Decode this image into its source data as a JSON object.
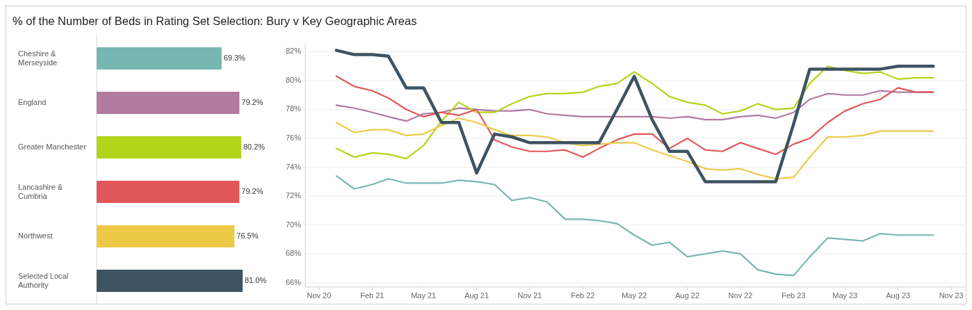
{
  "chart_data": [
    {
      "type": "bar",
      "orientation": "horizontal",
      "title": "% of the Number of Beds in Rating Set Selection: Bury v Key Geographic Areas",
      "categories": [
        "Cheshire & Merseyside",
        "England",
        "Greater Manchester",
        "Lancashire & Cumbria",
        "Northwest",
        "Selected Local Authority"
      ],
      "values": [
        69.3,
        79.2,
        80.2,
        79.2,
        76.5,
        81.0
      ],
      "colors": [
        "#76b7b2",
        "#b07aa1",
        "#b3d41a",
        "#e15759",
        "#edc948",
        "#3d5361"
      ],
      "value_labels": [
        "69.3%",
        "79.2%",
        "80.2%",
        "79.2%",
        "76.5%",
        "81.0%"
      ]
    },
    {
      "type": "line",
      "x": [
        "2020-12",
        "2021-01",
        "2021-02",
        "2021-03",
        "2021-04",
        "2021-05",
        "2021-06",
        "2021-07",
        "2021-08",
        "2021-09",
        "2021-10",
        "2021-11",
        "2021-12",
        "2022-01",
        "2022-02",
        "2022-03",
        "2022-04",
        "2022-05",
        "2022-06",
        "2022-07",
        "2022-08",
        "2022-09",
        "2022-10",
        "2022-11",
        "2022-12",
        "2023-01",
        "2023-02",
        "2023-03",
        "2023-04",
        "2023-05",
        "2023-06",
        "2023-07",
        "2023-08",
        "2023-09",
        "2023-10"
      ],
      "series": [
        {
          "color": "#76b7b2",
          "values": [
            73.4,
            72.5,
            72.8,
            73.2,
            72.9,
            72.9,
            72.9,
            73.1,
            73.0,
            72.8,
            71.7,
            71.9,
            71.6,
            70.4,
            70.4,
            70.3,
            70.1,
            69.3,
            68.6,
            68.8,
            67.8,
            68.0,
            68.2,
            68.0,
            66.9,
            66.6,
            66.5,
            67.8,
            69.1,
            69.0,
            68.9,
            69.4,
            69.3,
            69.3,
            69.3
          ]
        },
        {
          "color": "#b07aa1",
          "values": [
            78.3,
            78.1,
            77.8,
            77.5,
            77.2,
            77.7,
            77.8,
            78.1,
            78.0,
            77.9,
            77.9,
            78.0,
            77.7,
            77.6,
            77.5,
            77.5,
            77.5,
            77.5,
            77.5,
            77.4,
            77.5,
            77.3,
            77.3,
            77.5,
            77.6,
            77.4,
            77.8,
            78.7,
            79.1,
            79.0,
            79.0,
            79.3,
            79.2,
            79.2,
            79.2
          ]
        },
        {
          "color": "#b3d41a",
          "values": [
            75.3,
            74.7,
            75.0,
            74.9,
            74.6,
            75.5,
            77.2,
            78.5,
            77.8,
            77.8,
            78.4,
            78.9,
            79.1,
            79.1,
            79.2,
            79.6,
            79.8,
            80.6,
            79.8,
            78.9,
            78.5,
            78.3,
            77.7,
            77.9,
            78.4,
            78.0,
            78.1,
            79.8,
            81.0,
            80.7,
            80.5,
            80.6,
            80.1,
            80.2,
            80.2
          ]
        },
        {
          "color": "#e15759",
          "values": [
            80.3,
            79.6,
            79.3,
            78.8,
            78.0,
            77.5,
            77.8,
            77.6,
            78.0,
            75.9,
            75.4,
            75.1,
            75.1,
            75.2,
            74.7,
            75.3,
            75.9,
            76.3,
            76.3,
            75.3,
            76.0,
            75.2,
            75.1,
            75.7,
            75.3,
            74.9,
            75.6,
            76.0,
            77.1,
            77.9,
            78.4,
            78.7,
            79.5,
            79.2,
            79.2
          ]
        },
        {
          "color": "#edc948",
          "values": [
            77.1,
            76.4,
            76.6,
            76.6,
            76.2,
            76.3,
            76.9,
            77.4,
            77.1,
            76.6,
            76.2,
            76.2,
            76.1,
            75.7,
            75.5,
            75.6,
            75.7,
            75.7,
            75.2,
            74.8,
            74.4,
            73.9,
            73.8,
            73.9,
            73.5,
            73.2,
            73.3,
            74.7,
            76.1,
            76.1,
            76.2,
            76.5,
            76.5,
            76.5,
            76.5
          ]
        },
        {
          "color": "#3d5361",
          "values": [
            82.1,
            81.8,
            81.8,
            81.7,
            79.5,
            79.5,
            77.1,
            77.1,
            73.6,
            76.3,
            76.1,
            75.7,
            75.7,
            75.7,
            75.7,
            75.7,
            78.0,
            80.3,
            77.3,
            75.1,
            75.1,
            73.0,
            73.0,
            73.0,
            73.0,
            73.0,
            77.0,
            80.8,
            80.8,
            80.8,
            80.8,
            80.8,
            81.0,
            81.0,
            81.0
          ]
        }
      ],
      "xlim": [
        "2020-10-08",
        "2023-11-25"
      ],
      "xticks": [
        {
          "value": "2020-11",
          "label": "Nov 20"
        },
        {
          "value": "2021-02",
          "label": "Feb 21"
        },
        {
          "value": "2021-05",
          "label": "May 21"
        },
        {
          "value": "2021-08",
          "label": "Aug 21"
        },
        {
          "value": "2021-11",
          "label": "Nov 21"
        },
        {
          "value": "2022-02",
          "label": "Feb 22"
        },
        {
          "value": "2022-05",
          "label": "May 22"
        },
        {
          "value": "2022-08",
          "label": "Aug 22"
        },
        {
          "value": "2022-11",
          "label": "Nov 22"
        },
        {
          "value": "2023-02",
          "label": "Feb 23"
        },
        {
          "value": "2023-05",
          "label": "May 23"
        },
        {
          "value": "2023-08",
          "label": "Aug 23"
        },
        {
          "value": "2023-11",
          "label": "Nov 23"
        }
      ],
      "ylim": [
        65.7,
        82.6
      ],
      "yticks": [
        {
          "value": 66,
          "label": "66%"
        },
        {
          "value": 68,
          "label": "68%"
        },
        {
          "value": 70,
          "label": "70%"
        },
        {
          "value": 72,
          "label": "72%"
        },
        {
          "value": 74,
          "label": "74%"
        },
        {
          "value": 76,
          "label": "76%"
        },
        {
          "value": 78,
          "label": "78%"
        },
        {
          "value": 80,
          "label": "80%"
        },
        {
          "value": 82,
          "label": "82%"
        }
      ],
      "grid": "y"
    }
  ]
}
